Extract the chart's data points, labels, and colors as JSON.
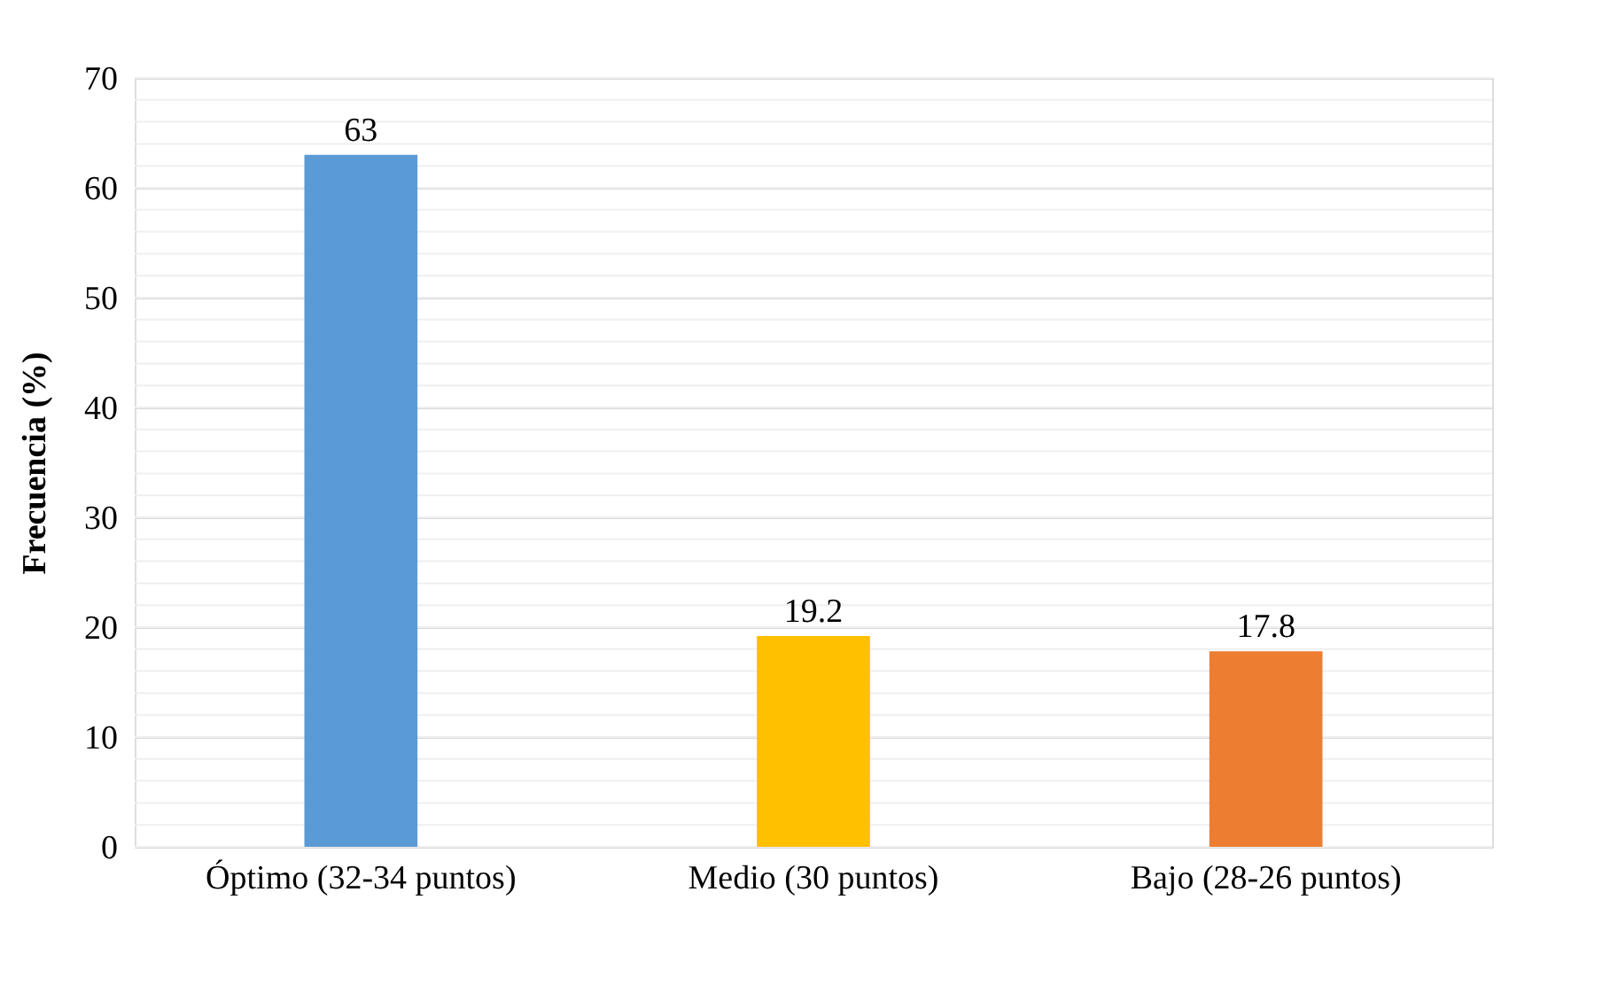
{
  "chart_data": {
    "type": "bar",
    "ylabel": "Frecuencia (%)",
    "categories": [
      "Óptimo (32-34 puntos)",
      "Medio (30 puntos)",
      "Bajo (28-26 puntos)"
    ],
    "values": [
      63,
      19.2,
      17.8
    ],
    "colors": [
      "#5b9bd5",
      "#ffc000",
      "#ed7d31"
    ],
    "ylim": [
      0,
      70
    ],
    "yticks": [
      0,
      10,
      20,
      30,
      40,
      50,
      60,
      70
    ],
    "grid": "y",
    "data_labels": true
  }
}
